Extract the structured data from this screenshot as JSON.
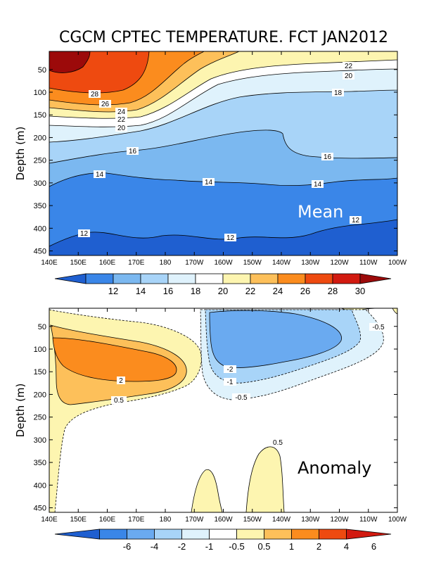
{
  "chart_data": [
    {
      "type": "contour",
      "title": "CGCM CPTEC TEMPERATURE. FCT JAN2012",
      "ylabel": "Depth (m)",
      "annotation": "Mean",
      "xticks": [
        "140E",
        "150E",
        "160E",
        "170E",
        "180",
        "170W",
        "160W",
        "150W",
        "140W",
        "130W",
        "120W",
        "110W",
        "100W"
      ],
      "yticks": [
        50,
        100,
        150,
        200,
        250,
        300,
        350,
        400,
        450
      ],
      "ylim": [
        10,
        460
      ],
      "contour_labels": [
        "22",
        "20",
        "18",
        "28",
        "26",
        "24",
        "22",
        "20",
        "16",
        "16",
        "14",
        "14",
        "14",
        "12",
        "12",
        "12"
      ],
      "colorbar_ticks": [
        "12",
        "14",
        "16",
        "18",
        "20",
        "22",
        "24",
        "26",
        "28",
        "30"
      ],
      "colorbar_colors": [
        "#1f5fd0",
        "#3a86e8",
        "#7bb8f0",
        "#a8d4f8",
        "#dff2fc",
        "#ffffff",
        "#fdf5b0",
        "#fdc05a",
        "#fb8c1e",
        "#ee4a10",
        "#d21a10",
        "#9c0a0a"
      ]
    },
    {
      "type": "contour",
      "ylabel": "Depth (m)",
      "annotation": "Anomaly",
      "xticks": [
        "140E",
        "150E",
        "160E",
        "170E",
        "180",
        "170W",
        "160W",
        "150W",
        "140W",
        "130W",
        "120W",
        "110W",
        "100W"
      ],
      "yticks": [
        50,
        100,
        150,
        200,
        250,
        300,
        350,
        400,
        450
      ],
      "ylim": [
        10,
        460
      ],
      "contour_labels": [
        "2",
        "0.5",
        "-2",
        "-1",
        "-0.5",
        "-0.5",
        "0.5"
      ],
      "colorbar_ticks": [
        "-6",
        "-4",
        "-2",
        "-1",
        "-0.5",
        "0.5",
        "1",
        "2",
        "4",
        "6"
      ],
      "colorbar_colors": [
        "#1f5fd0",
        "#3a86e8",
        "#6aaaf0",
        "#a8d4f8",
        "#dff2fc",
        "#ffffff",
        "#fdf5b0",
        "#fdc05a",
        "#fb8c1e",
        "#ee4a10",
        "#d21a10"
      ]
    }
  ]
}
